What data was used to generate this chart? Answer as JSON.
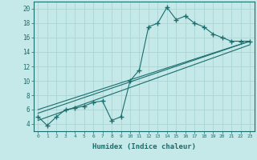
{
  "xlabel": "Humidex (Indice chaleur)",
  "bg_color": "#c5e8e8",
  "grid_color": "#aad4d4",
  "line_color": "#1a6e6e",
  "xlim": [
    -0.5,
    23.5
  ],
  "ylim": [
    3,
    21
  ],
  "xticks": [
    0,
    1,
    2,
    3,
    4,
    5,
    6,
    7,
    8,
    9,
    10,
    11,
    12,
    13,
    14,
    15,
    16,
    17,
    18,
    19,
    20,
    21,
    22,
    23
  ],
  "yticks": [
    4,
    6,
    8,
    10,
    12,
    14,
    16,
    18,
    20
  ],
  "series1_x": [
    0,
    1,
    2,
    3,
    4,
    5,
    6,
    7,
    8,
    9,
    10,
    11,
    12,
    13,
    14,
    15,
    16,
    17,
    18,
    19,
    20,
    21,
    22,
    23
  ],
  "series1_y": [
    5.0,
    3.8,
    5.0,
    6.0,
    6.2,
    6.5,
    7.0,
    7.2,
    4.5,
    5.0,
    10.0,
    11.5,
    17.5,
    18.0,
    20.2,
    18.5,
    19.0,
    18.0,
    17.5,
    16.5,
    16.0,
    15.5,
    15.5,
    15.5
  ],
  "series2_x": [
    0,
    23
  ],
  "series2_y": [
    5.5,
    15.5
  ],
  "series3_x": [
    0,
    23
  ],
  "series3_y": [
    4.5,
    15.0
  ],
  "series4_x": [
    0,
    23
  ],
  "series4_y": [
    6.0,
    15.5
  ]
}
